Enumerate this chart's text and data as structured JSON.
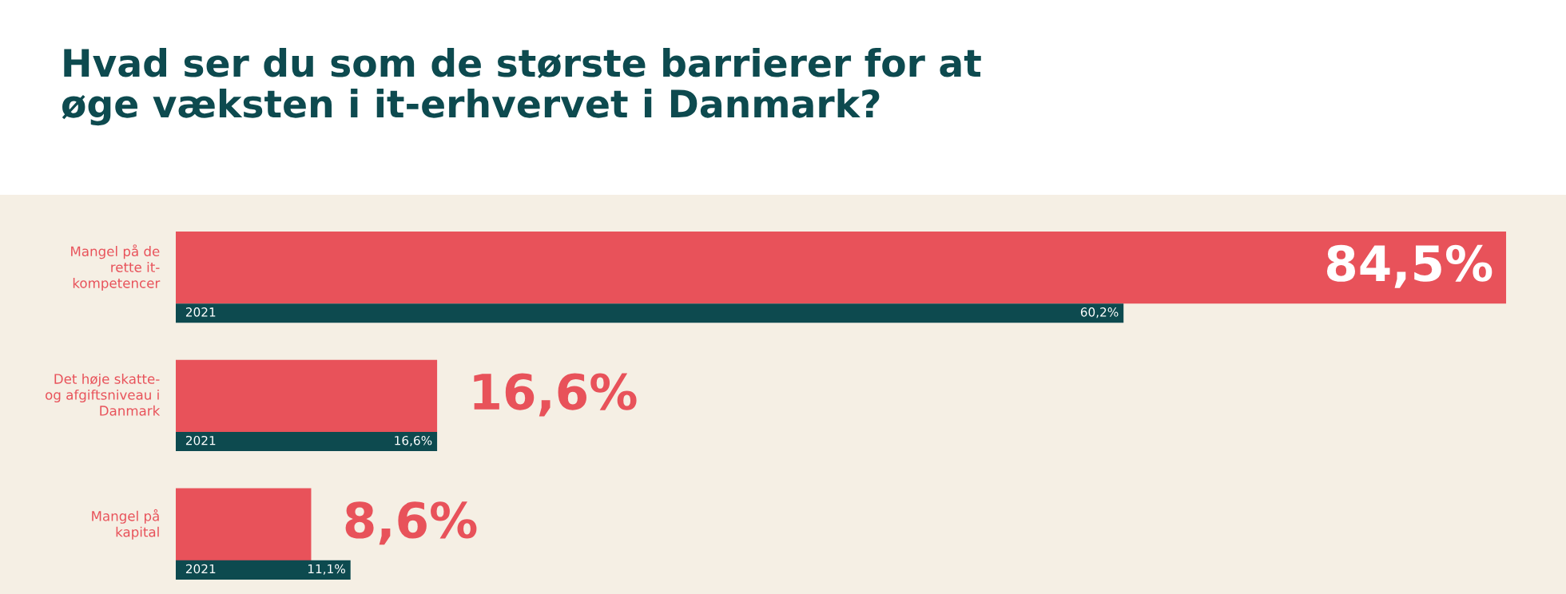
{
  "chart_data": {
    "type": "bar",
    "orientation": "horizontal",
    "title": "Hvad ser du som de største barrierer for at\nøge væksten i it-erhvervet i Danmark?",
    "categories": [
      "Mangel på de\nrette it-\nkompetencer",
      "Det høje skatte-\nog afgiftsniveau i\nDanmark",
      "Mangel på\nkapital"
    ],
    "series": [
      {
        "color": "#e8525a",
        "values": [
          84.5,
          16.6,
          8.6
        ],
        "value_labels": [
          "84,5%",
          "16,6%",
          "8,6%"
        ]
      },
      {
        "name": "2021",
        "color": "#0d4a4f",
        "values": [
          60.2,
          16.6,
          11.1
        ],
        "value_labels": [
          "60,2%",
          "16,6%",
          "11,1%"
        ]
      }
    ],
    "tick_labels": false,
    "grid": false,
    "legend": false
  }
}
